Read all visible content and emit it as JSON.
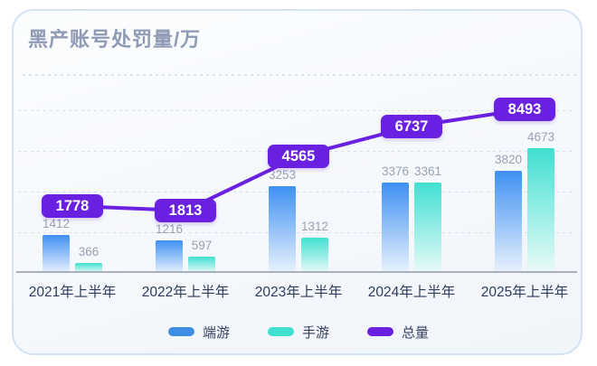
{
  "card": {
    "title": "黑产账号处罚量/万"
  },
  "chart_data": {
    "type": "bar",
    "title": "黑产账号处罚量/万",
    "categories": [
      "2021年上半年",
      "2022年上半年",
      "2023年上半年",
      "2024年上半年",
      "2025年上半年"
    ],
    "series": [
      {
        "name": "端游",
        "type": "bar",
        "color_top": "#3f90f2",
        "color_bottom": "#e9f2fd",
        "values": [
          1412,
          1216,
          3253,
          3376,
          3820
        ]
      },
      {
        "name": "手游",
        "type": "bar",
        "color_top": "#40e0d2",
        "color_bottom": "#eafaf8",
        "values": [
          366,
          597,
          1312,
          3361,
          4673
        ]
      },
      {
        "name": "总量",
        "type": "line",
        "color": "#6a20e0",
        "values": [
          1778,
          1813,
          4565,
          6737,
          8493
        ]
      }
    ],
    "xlabel": "",
    "ylabel": "",
    "ylim": [
      0,
      7500
    ],
    "grid": true,
    "legend_position": "bottom"
  },
  "legend": {
    "items": [
      {
        "label": "端游",
        "color": "#3e8ee4"
      },
      {
        "label": "手游",
        "color": "#41dfd2"
      },
      {
        "label": "总量",
        "color": "#6a20e0"
      }
    ]
  },
  "colors": {
    "accent_purple": "#6a20e0",
    "bar_blue": "#3f90f2",
    "bar_teal": "#40e0d2",
    "title_text": "#8f9ab4",
    "axis_text": "#2e3c5c",
    "value_text": "#98a1b3"
  }
}
